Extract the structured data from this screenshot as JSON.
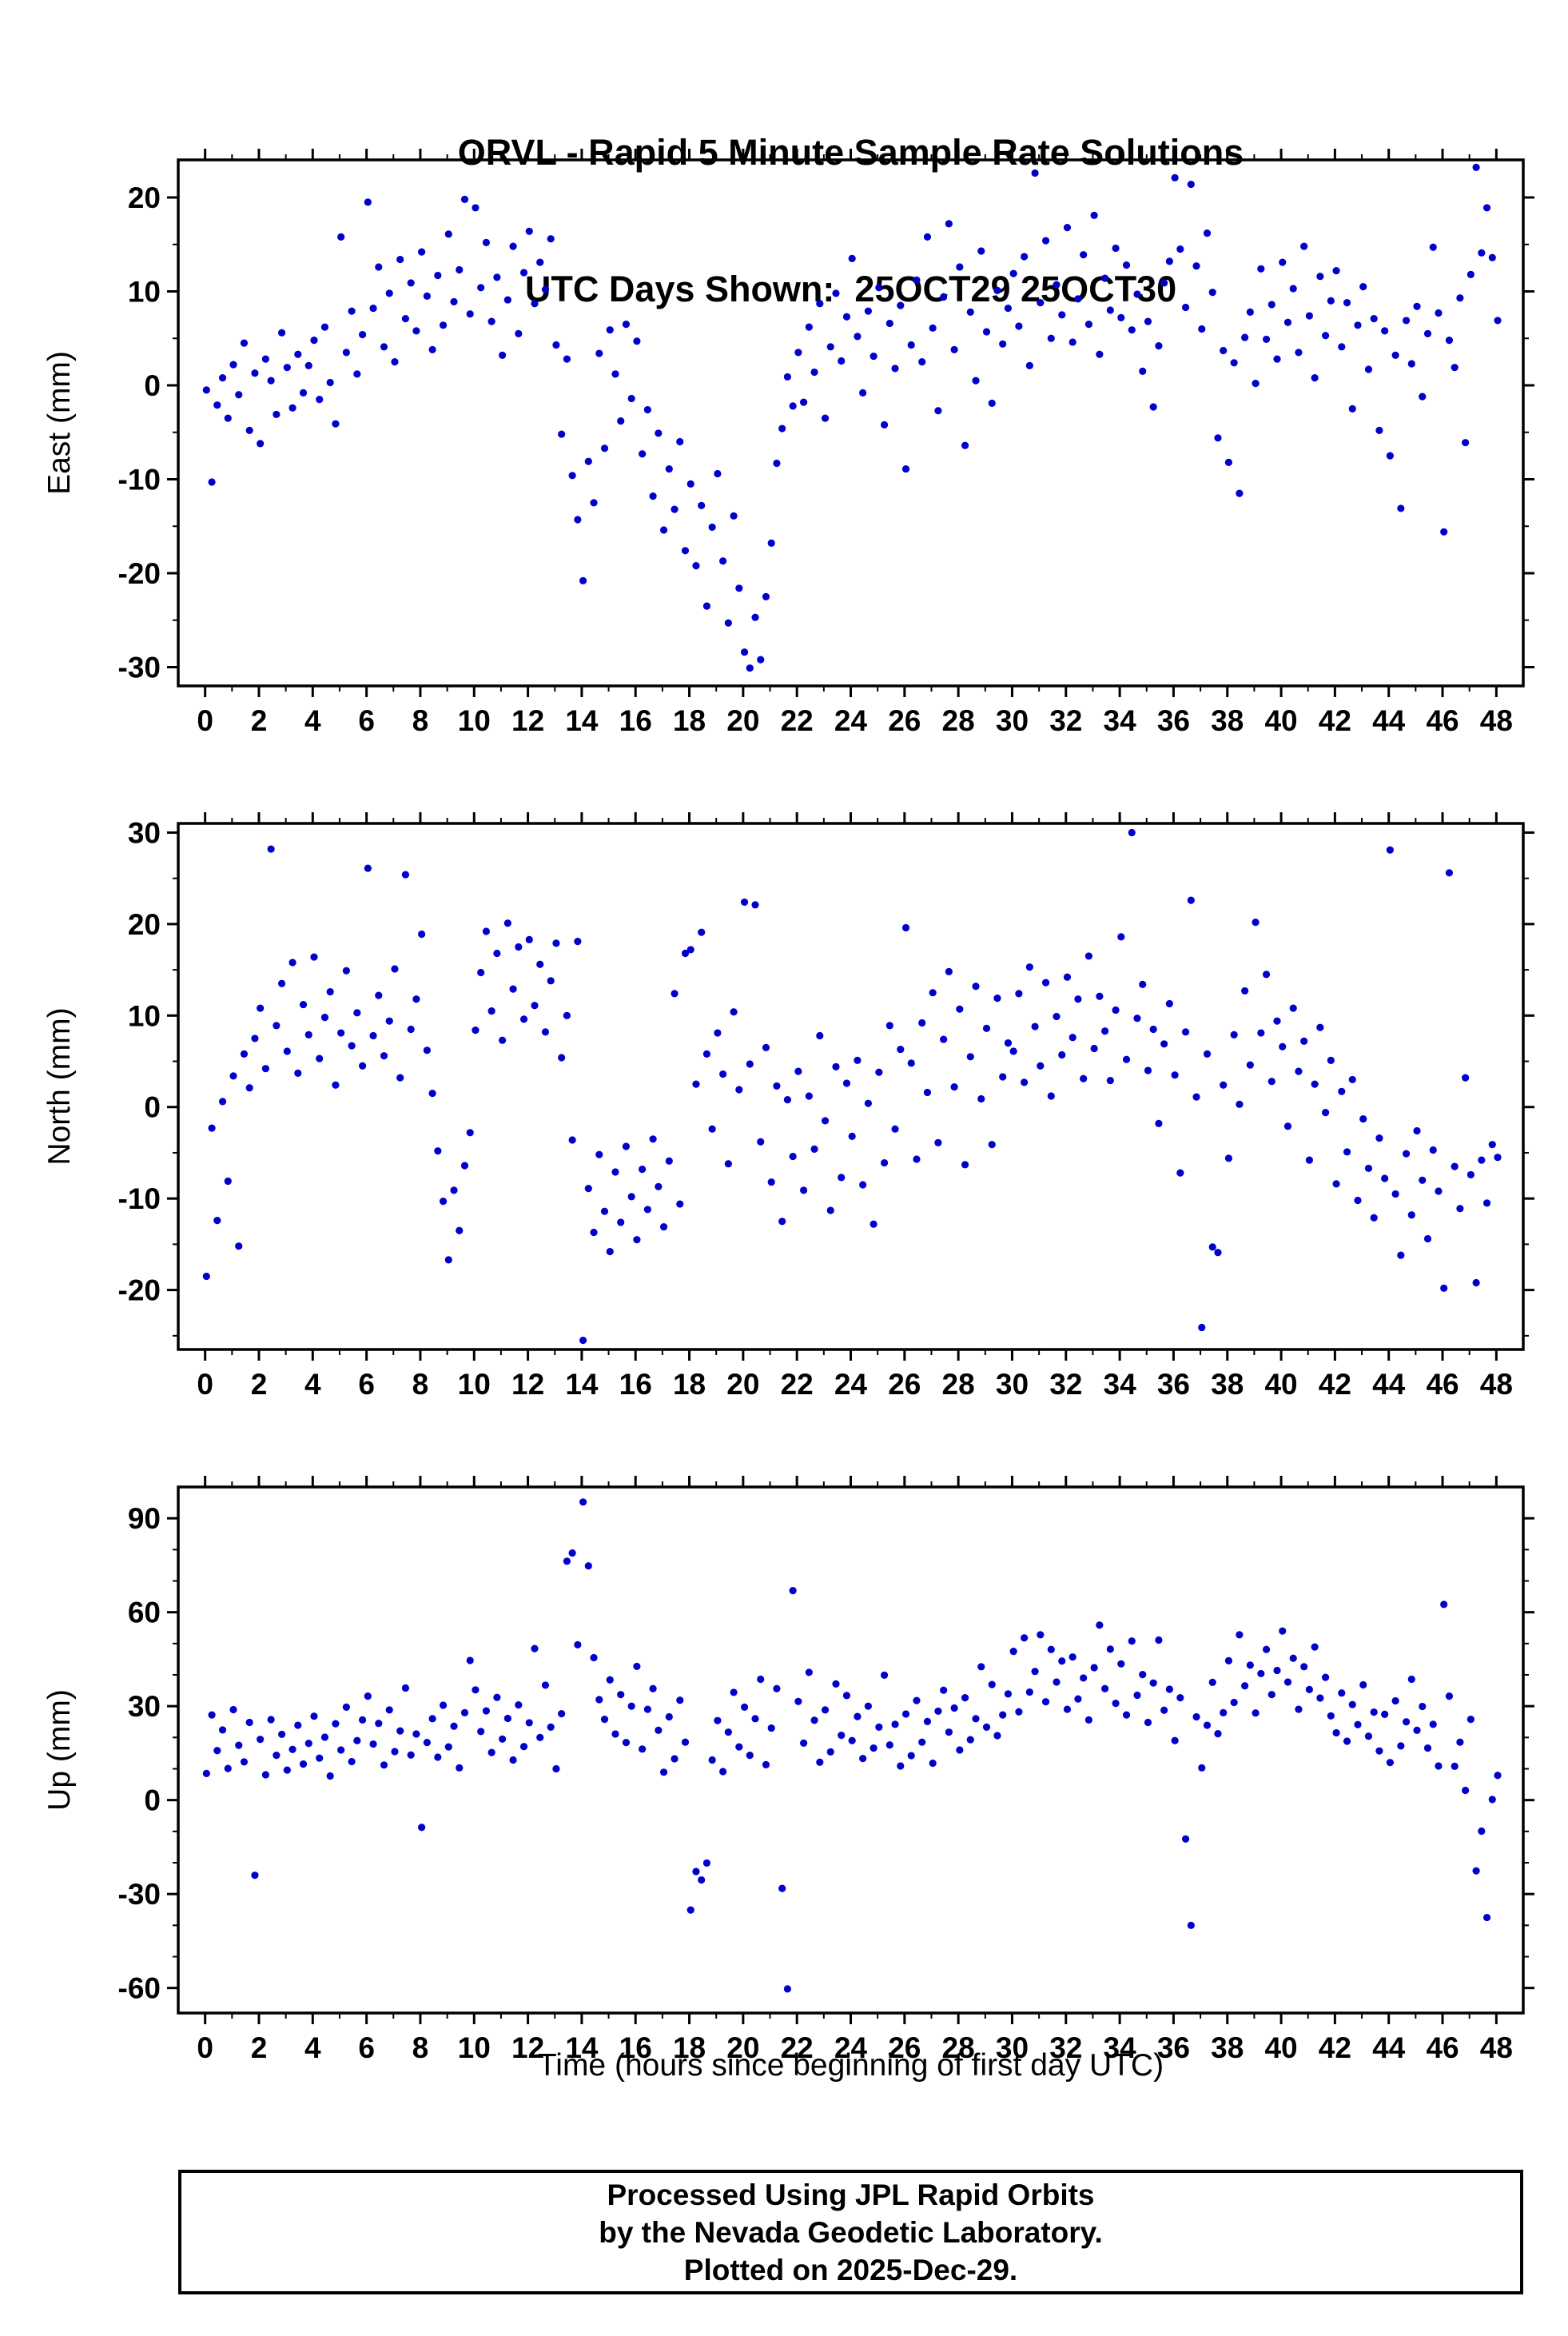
{
  "title": {
    "line1": "ORVL - Rapid 5 Minute Sample Rate Solutions",
    "line2": "UTC Days Shown:  25OCT29 25OCT30"
  },
  "xlabel": "Time (hours since beginning of first day UTC)",
  "footer": {
    "line1": "Processed Using JPL Rapid Orbits",
    "line2": "by the Nevada Geodetic Laboratory.",
    "line3": "Plotted on 2025-Dec-29."
  },
  "chart_data": {
    "type": "scatter",
    "point_color": "#0000cc",
    "x_axis": {
      "lim": [
        -1,
        49
      ],
      "ticks": [
        0,
        2,
        4,
        6,
        8,
        10,
        12,
        14,
        16,
        18,
        20,
        22,
        24,
        26,
        28,
        30,
        32,
        34,
        36,
        38,
        40,
        42,
        44,
        46,
        48
      ],
      "minor_step": 1
    },
    "panels": [
      {
        "name": "east",
        "ylabel": "East (mm)",
        "ylim": [
          -32,
          24
        ],
        "yticks": [
          -30,
          -20,
          -10,
          0,
          10,
          20
        ],
        "yminor": 5,
        "points": {
          "t_start": 0.05,
          "t_step": 0.2,
          "values": [
            -0.5,
            -10.3,
            -2.1,
            0.8,
            -3.5,
            2.2,
            -1.0,
            4.5,
            -4.8,
            1.3,
            -6.2,
            2.8,
            0.5,
            -3.1,
            5.6,
            1.9,
            -2.4,
            3.3,
            -0.8,
            2.1,
            4.8,
            -1.5,
            6.2,
            0.3,
            -4.1,
            15.8,
            3.5,
            7.9,
            1.2,
            5.4,
            19.5,
            8.2,
            12.6,
            4.1,
            9.8,
            2.5,
            13.4,
            7.1,
            10.9,
            5.8,
            14.2,
            9.5,
            3.8,
            11.7,
            6.4,
            16.1,
            8.9,
            12.3,
            19.8,
            7.6,
            18.9,
            10.4,
            15.2,
            6.8,
            11.5,
            3.2,
            9.1,
            14.8,
            5.5,
            12.0,
            16.4,
            8.7,
            13.1,
            10.2,
            15.6,
            4.3,
            -5.2,
            2.8,
            -9.6,
            -14.3,
            -20.8,
            -8.1,
            -12.5,
            3.4,
            -6.7,
            5.9,
            1.2,
            -3.8,
            6.5,
            -1.4,
            4.7,
            -7.3,
            -2.6,
            -11.8,
            -5.1,
            -15.4,
            -8.9,
            -13.2,
            -6.0,
            -17.6,
            -10.5,
            -19.2,
            -12.8,
            -23.5,
            -15.1,
            -9.4,
            -18.7,
            -25.3,
            -13.9,
            -21.6,
            -28.4,
            -30.1,
            -24.7,
            -29.2,
            -22.5,
            -16.8,
            -8.3,
            -4.6,
            0.9,
            -2.2,
            3.5,
            -1.8,
            6.2,
            1.4,
            8.7,
            -3.5,
            4.1,
            9.8,
            2.6,
            7.3,
            13.5,
            5.2,
            -0.8,
            7.9,
            3.1,
            10.4,
            -4.2,
            6.6,
            1.8,
            8.5,
            -8.9,
            4.3,
            11.2,
            2.5,
            15.8,
            6.1,
            -2.7,
            9.4,
            17.2,
            3.8,
            12.6,
            -6.4,
            7.8,
            0.5,
            14.3,
            5.7,
            -1.9,
            10.1,
            4.4,
            8.2,
            11.9,
            6.3,
            13.7,
            2.1,
            22.6,
            8.8,
            15.4,
            5.0,
            10.7,
            7.5,
            16.8,
            4.6,
            9.2,
            13.9,
            6.5,
            18.1,
            3.3,
            11.4,
            8.0,
            14.6,
            7.2,
            12.8,
            5.9,
            9.7,
            1.5,
            6.8,
            -2.3,
            4.2,
            10.9,
            13.2,
            22.1,
            14.5,
            8.3,
            21.4,
            12.7,
            6.0,
            16.2,
            9.9,
            -5.6,
            3.7,
            -8.2,
            2.4,
            -11.5,
            5.1,
            7.8,
            0.2,
            12.4,
            4.9,
            8.6,
            2.8,
            13.1,
            6.7,
            10.3,
            3.5,
            14.8,
            7.4,
            0.8,
            11.6,
            5.3,
            9.0,
            12.2,
            4.1,
            8.8,
            -2.5,
            6.4,
            10.5,
            1.7,
            7.1,
            -4.8,
            5.8,
            -7.5,
            3.2,
            -13.1,
            6.9,
            2.3,
            8.4,
            -1.2,
            5.5,
            14.7,
            7.7,
            -15.6,
            4.8,
            1.9,
            9.3,
            -6.1,
            11.8,
            23.2,
            14.1,
            18.9,
            13.6,
            6.9
          ]
        }
      },
      {
        "name": "north",
        "ylabel": "North (mm)",
        "ylim": [
          -26.5,
          31
        ],
        "yticks": [
          -20,
          -10,
          0,
          10,
          20,
          30
        ],
        "yminor": 5,
        "points": {
          "t_start": 0.05,
          "t_step": 0.2,
          "values": [
            -18.5,
            -2.3,
            -12.4,
            0.6,
            -8.1,
            3.4,
            -15.2,
            5.8,
            2.1,
            7.5,
            10.8,
            4.2,
            28.2,
            8.9,
            13.5,
            6.1,
            15.8,
            3.7,
            11.2,
            7.9,
            16.4,
            5.3,
            9.8,
            12.6,
            2.4,
            8.1,
            14.9,
            6.7,
            10.3,
            4.5,
            26.1,
            7.8,
            12.2,
            5.6,
            9.4,
            15.1,
            3.2,
            25.4,
            8.5,
            11.8,
            18.9,
            6.2,
            1.5,
            -4.8,
            -10.3,
            -16.7,
            -9.1,
            -13.5,
            -6.4,
            -2.8,
            8.4,
            14.7,
            19.2,
            10.5,
            16.8,
            7.3,
            20.1,
            12.9,
            17.5,
            9.6,
            18.3,
            11.1,
            15.6,
            8.2,
            13.8,
            17.9,
            5.4,
            10.0,
            -3.6,
            18.1,
            -25.5,
            -8.9,
            -13.7,
            -5.2,
            -11.4,
            -15.8,
            -7.1,
            -12.6,
            -4.3,
            -9.8,
            -14.5,
            -6.8,
            -11.2,
            -3.5,
            -8.7,
            -13.1,
            -5.9,
            12.4,
            -10.6,
            16.8,
            17.2,
            2.5,
            19.1,
            5.8,
            -2.4,
            8.1,
            3.6,
            -6.2,
            10.4,
            1.9,
            22.4,
            4.7,
            22.1,
            -3.8,
            6.5,
            -8.2,
            2.3,
            -12.5,
            0.8,
            -5.4,
            3.9,
            -9.1,
            1.2,
            -4.6,
            7.8,
            -1.5,
            -11.3,
            4.4,
            -7.7,
            2.6,
            -3.2,
            5.1,
            -8.5,
            0.4,
            -12.8,
            3.8,
            -6.1,
            8.9,
            -2.4,
            6.3,
            19.6,
            4.8,
            -5.7,
            9.2,
            1.6,
            12.5,
            -3.9,
            7.4,
            14.8,
            2.2,
            10.7,
            -6.3,
            5.5,
            13.2,
            0.9,
            8.6,
            -4.1,
            11.9,
            3.3,
            7.0,
            6.1,
            12.4,
            2.7,
            15.3,
            8.8,
            4.5,
            13.6,
            1.2,
            9.9,
            5.7,
            14.2,
            7.6,
            11.8,
            3.1,
            16.5,
            6.4,
            12.1,
            8.3,
            2.9,
            10.6,
            18.6,
            5.2,
            30.0,
            9.7,
            13.4,
            4.0,
            8.5,
            -1.8,
            6.9,
            11.3,
            3.5,
            -7.2,
            8.2,
            22.6,
            1.1,
            -24.1,
            5.8,
            -15.3,
            -15.9,
            2.4,
            -5.6,
            7.9,
            0.3,
            12.7,
            4.6,
            20.2,
            8.1,
            14.5,
            2.8,
            9.4,
            6.6,
            -2.1,
            10.8,
            3.9,
            7.2,
            -5.8,
            2.5,
            8.7,
            -0.6,
            5.1,
            -8.4,
            1.7,
            -4.9,
            3.0,
            -10.2,
            -1.3,
            -6.7,
            -12.1,
            -3.4,
            -7.8,
            28.1,
            -9.5,
            -16.2,
            -5.1,
            -11.8,
            -2.6,
            -8.0,
            -14.4,
            -4.7,
            -9.2,
            -19.8,
            25.6,
            -6.5,
            -11.1,
            3.2,
            -7.4,
            -19.2,
            -5.8,
            -10.5,
            -4.1,
            -5.5
          ]
        }
      },
      {
        "name": "up",
        "ylabel": "Up (mm)",
        "ylim": [
          -68,
          100
        ],
        "yticks": [
          -60,
          -30,
          0,
          30,
          60,
          90
        ],
        "yminor": 10,
        "points": {
          "t_start": 0.05,
          "t_step": 0.2,
          "values": [
            8.5,
            27.2,
            15.8,
            22.4,
            10.1,
            28.9,
            17.5,
            12.2,
            24.8,
            -24.0,
            19.4,
            8.1,
            25.7,
            14.3,
            21.0,
            9.6,
            16.2,
            23.9,
            11.5,
            18.1,
            26.8,
            13.4,
            20.1,
            7.7,
            24.4,
            16.0,
            29.7,
            12.3,
            19.0,
            25.6,
            33.2,
            17.9,
            24.5,
            11.2,
            28.8,
            15.5,
            22.1,
            35.8,
            14.4,
            21.1,
            -8.7,
            18.4,
            26.0,
            13.7,
            30.3,
            17.0,
            23.6,
            10.3,
            27.9,
            44.6,
            35.2,
            21.9,
            28.5,
            15.2,
            32.8,
            19.5,
            26.1,
            12.8,
            30.4,
            17.1,
            24.7,
            48.4,
            20.0,
            36.7,
            23.3,
            10.0,
            27.6,
            76.3,
            78.9,
            49.6,
            95.2,
            74.8,
            45.5,
            32.1,
            25.8,
            38.4,
            21.1,
            33.7,
            18.4,
            30.0,
            42.7,
            16.3,
            29.0,
            35.6,
            22.3,
            8.9,
            26.6,
            13.2,
            31.9,
            18.5,
            -35.1,
            -22.8,
            -25.5,
            -20.1,
            12.8,
            25.4,
            9.1,
            21.7,
            34.4,
            17.0,
            29.7,
            14.3,
            26.0,
            38.6,
            11.3,
            23.0,
            35.6,
            -28.2,
            -60.3,
            66.9,
            31.5,
            18.2,
            40.8,
            25.5,
            12.1,
            28.8,
            15.4,
            37.1,
            20.7,
            33.4,
            19.0,
            26.7,
            13.3,
            30.0,
            16.6,
            23.3,
            39.9,
            17.6,
            24.2,
            10.9,
            27.5,
            14.2,
            31.8,
            18.5,
            25.1,
            11.8,
            28.4,
            35.1,
            21.7,
            29.4,
            16.0,
            32.7,
            19.3,
            26.0,
            42.6,
            23.3,
            36.9,
            20.6,
            27.2,
            33.9,
            47.5,
            28.2,
            51.8,
            34.5,
            41.1,
            52.8,
            31.4,
            48.1,
            37.7,
            44.4,
            29.0,
            45.7,
            32.3,
            39.0,
            25.6,
            42.3,
            55.9,
            35.6,
            48.2,
            30.9,
            43.5,
            27.2,
            50.8,
            33.5,
            40.1,
            24.8,
            37.4,
            51.1,
            28.7,
            35.4,
            19.0,
            32.7,
            -12.4,
            -40.0,
            26.6,
            10.3,
            23.9,
            37.6,
            21.2,
            27.9,
            44.5,
            31.2,
            52.8,
            36.5,
            43.1,
            27.8,
            40.4,
            48.1,
            33.7,
            41.4,
            54.0,
            37.7,
            45.3,
            29.0,
            42.6,
            35.3,
            48.9,
            32.6,
            39.2,
            26.9,
            21.5,
            34.2,
            18.8,
            30.5,
            24.1,
            36.8,
            20.4,
            28.1,
            15.7,
            27.4,
            12.0,
            31.7,
            17.3,
            25.0,
            38.6,
            22.3,
            29.9,
            16.6,
            24.2,
            10.9,
            62.5,
            33.2,
            10.8,
            18.5,
            3.1,
            25.8,
            -22.6,
            -9.9,
            -37.5,
            0.2,
            7.9
          ]
        }
      }
    ]
  }
}
